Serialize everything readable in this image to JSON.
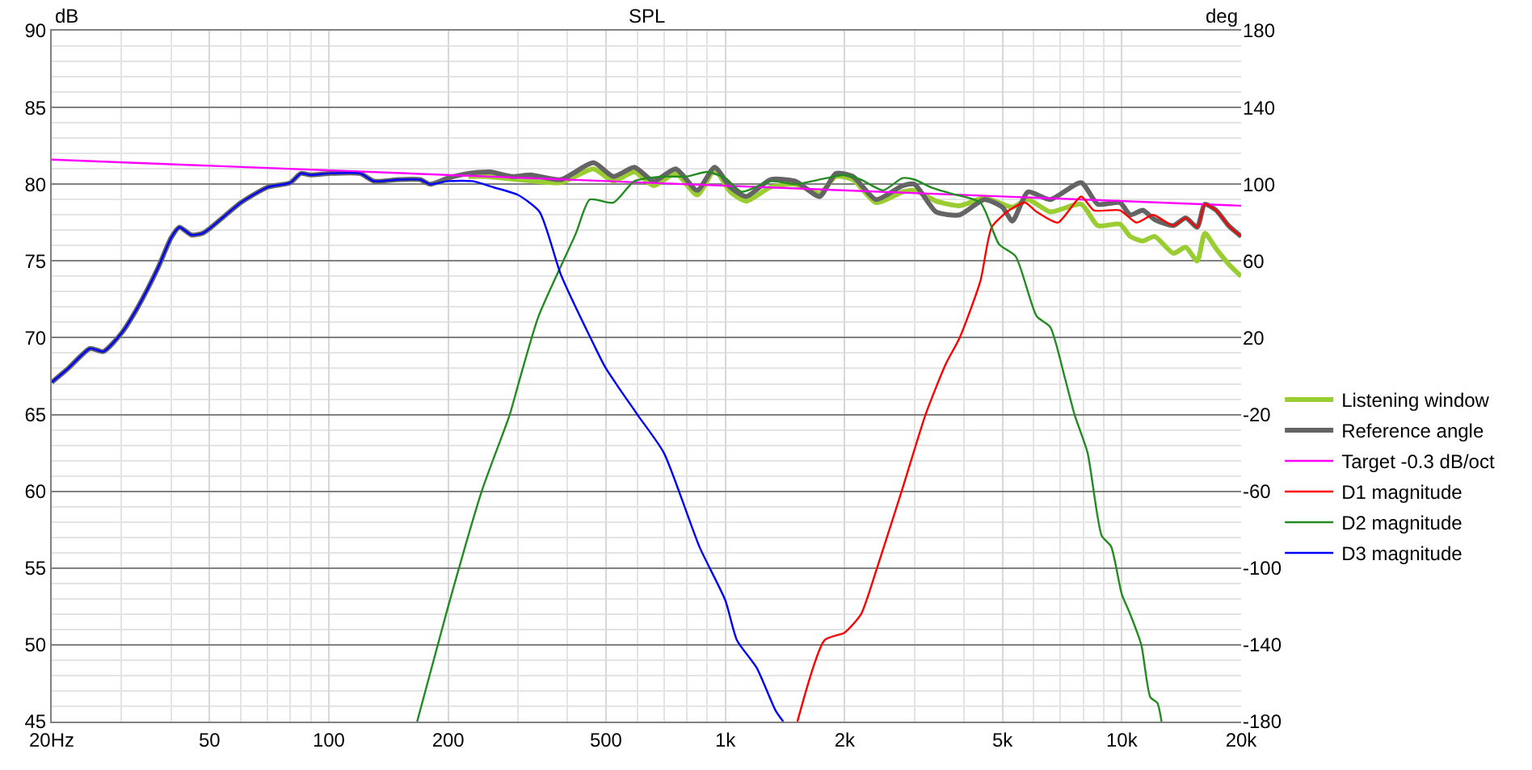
{
  "chart_data": {
    "type": "line",
    "title": "SPL",
    "ylabel": "dB",
    "y2label": "deg",
    "log": "x",
    "xlim": [
      20,
      20000
    ],
    "xticks": [
      {
        "value": 20,
        "label": "20Hz"
      },
      50,
      100,
      200,
      500,
      {
        "value": 1000,
        "label": "1k"
      },
      {
        "value": 2000,
        "label": "2k"
      },
      {
        "value": 5000,
        "label": "5k"
      },
      {
        "value": 10000,
        "label": "10k"
      },
      {
        "value": 20000,
        "label": "20k"
      }
    ],
    "ylim": [
      45,
      90
    ],
    "yticks": [
      45,
      50,
      55,
      60,
      65,
      70,
      75,
      80,
      85,
      90
    ],
    "y2lim": [
      -180,
      180
    ],
    "y2ticks": [
      -180,
      -140,
      -100,
      -60,
      -20,
      20,
      60,
      100,
      140,
      180
    ],
    "grid": true,
    "legend": "right",
    "line_style": "solid",
    "marker": "none",
    "series": [
      {
        "name": "Listening window",
        "color": "#9acd32",
        "x": [
          225,
          250,
          300,
          385,
          465,
          522,
          590,
          660,
          750,
          850,
          940,
          1030,
          1130,
          1300,
          1500,
          1730,
          1900,
          2100,
          2400,
          2800,
          3000,
          3400,
          3900,
          4500,
          5000,
          5300,
          5800,
          6600,
          7900,
          8700,
          9900,
          10500,
          11300,
          12100,
          13500,
          14500,
          15500,
          16200,
          17300,
          18600,
          20000
        ],
        "values": [
          80.5,
          80.5,
          80.3,
          80.1,
          81,
          80.2,
          80.8,
          79.9,
          80.7,
          79.3,
          80.9,
          79.5,
          78.9,
          79.8,
          80,
          79.4,
          80.5,
          80.3,
          78.8,
          79.5,
          79.6,
          78.9,
          78.6,
          79.1,
          78.7,
          78.5,
          79,
          78.2,
          78.7,
          77.3,
          77.4,
          76.6,
          76.3,
          76.6,
          75.5,
          75.9,
          75,
          76.8,
          75.8,
          74.8,
          74
        ]
      },
      {
        "name": "Reference angle",
        "color": "#646464",
        "x": [
          20,
          22,
          25,
          27,
          30,
          33,
          37,
          40,
          42,
          45,
          48,
          50,
          55,
          60,
          70,
          80,
          85,
          90,
          100,
          120,
          130,
          150,
          170,
          180,
          200,
          225,
          255,
          290,
          323,
          385,
          465,
          522,
          590,
          660,
          750,
          850,
          940,
          1030,
          1130,
          1300,
          1500,
          1730,
          1900,
          2100,
          2400,
          2800,
          3000,
          3400,
          3900,
          4500,
          5000,
          5300,
          5800,
          6600,
          7900,
          8700,
          9900,
          10500,
          11300,
          12100,
          13500,
          14500,
          15500,
          16200,
          17300,
          18600,
          20000
        ],
        "values": [
          67.1,
          68,
          69.3,
          69.1,
          70.3,
          72,
          74.5,
          76.5,
          77.2,
          76.7,
          76.8,
          77.1,
          78,
          78.8,
          79.8,
          80.1,
          80.7,
          80.6,
          80.7,
          80.7,
          80.2,
          80.3,
          80.3,
          80,
          80.4,
          80.7,
          80.8,
          80.5,
          80.6,
          80.3,
          81.4,
          80.5,
          81.1,
          80.2,
          81,
          79.6,
          81.1,
          79.8,
          79.2,
          80.3,
          80.2,
          79.2,
          80.7,
          80.5,
          79,
          79.9,
          80,
          78.2,
          78,
          79,
          78.5,
          77.6,
          79.5,
          79,
          80.1,
          78.7,
          78.8,
          78,
          78.3,
          77.7,
          77.3,
          77.8,
          77.2,
          78.7,
          78.3,
          77.3,
          76.6
        ]
      },
      {
        "name": "Target -0.3 dB/oct",
        "color": "#ff00ff",
        "x": [
          20,
          20000
        ],
        "values": [
          81.6,
          78.6
        ]
      },
      {
        "name": "D1 magnitude",
        "color": "#ff0000",
        "x": [
          1520,
          1780,
          2000,
          2200,
          2400,
          2800,
          3200,
          3600,
          3900,
          4400,
          4700,
          5200,
          5700,
          6100,
          6900,
          7900,
          8500,
          9900,
          10900,
          12000,
          13500,
          14500,
          15500,
          16200,
          17300,
          18600,
          20000
        ],
        "values": [
          45,
          50.3,
          50.8,
          52,
          54.8,
          60.2,
          65,
          68.3,
          70,
          73.7,
          77.2,
          78.3,
          78.8,
          78.2,
          77.5,
          79.2,
          78.3,
          78.3,
          77.5,
          78,
          77.3,
          77.8,
          77.2,
          78.7,
          78.3,
          77.3,
          76.6
        ]
      },
      {
        "name": "D2 magnitude",
        "color": "#228b22",
        "x": [
          167,
          199,
          243,
          286,
          303,
          338,
          420,
          455,
          522,
          590,
          700,
          800,
          900,
          1000,
          1100,
          1300,
          1500,
          1800,
          2000,
          2200,
          2500,
          2800,
          3000,
          3300,
          3700,
          4400,
          4900,
          5400,
          6100,
          6600,
          7200,
          7600,
          8200,
          8900,
          9400,
          10000,
          10500,
          11200,
          11800,
          12300,
          12600
        ],
        "values": [
          45,
          52.3,
          60,
          65,
          67.3,
          71.4,
          76.8,
          79,
          78.8,
          80.2,
          80.5,
          80.5,
          80.8,
          80.4,
          79.5,
          80.2,
          80,
          80.4,
          80.6,
          80.3,
          79.6,
          80.4,
          80.3,
          79.8,
          79.4,
          78.8,
          76.1,
          75.3,
          71.4,
          70.7,
          67.3,
          65,
          62.5,
          57.1,
          56.4,
          53.3,
          52,
          50,
          46.6,
          46.2,
          45
        ]
      },
      {
        "name": "D3 magnitude",
        "color": "#0000ff",
        "x": [
          20,
          22,
          25,
          27,
          30,
          33,
          37,
          40,
          42,
          45,
          48,
          50,
          55,
          60,
          70,
          80,
          85,
          90,
          100,
          120,
          130,
          150,
          170,
          180,
          200,
          230,
          260,
          300,
          340,
          385,
          465,
          500,
          600,
          700,
          860,
          1000,
          1070,
          1200,
          1340,
          1400
        ],
        "values": [
          67.1,
          68,
          69.3,
          69.1,
          70.3,
          72,
          74.5,
          76.5,
          77.2,
          76.7,
          76.8,
          77.1,
          78,
          78.8,
          79.8,
          80.1,
          80.7,
          80.6,
          80.7,
          80.7,
          80.2,
          80.3,
          80.3,
          80,
          80.2,
          80.2,
          79.8,
          79.3,
          78.2,
          74.1,
          69.6,
          68,
          65,
          62.5,
          56.4,
          52.9,
          50.3,
          48.5,
          45.7,
          45
        ]
      }
    ]
  }
}
